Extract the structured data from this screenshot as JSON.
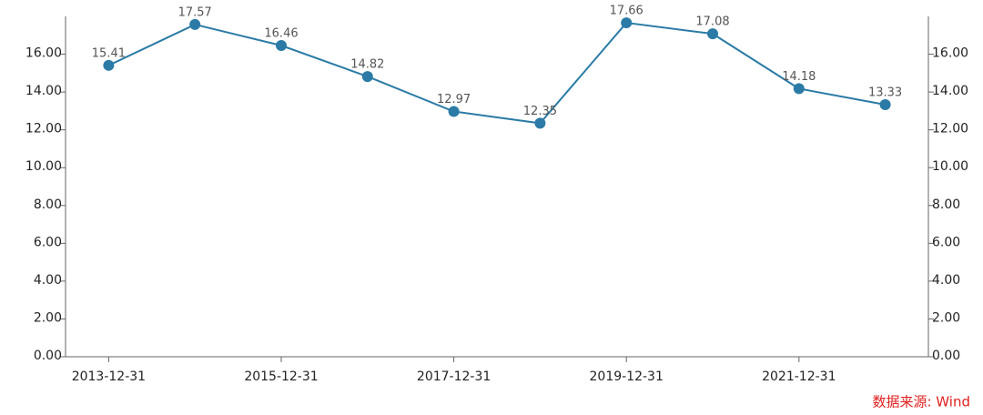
{
  "chart_data": {
    "type": "line",
    "categories": [
      "2013-12-31",
      null,
      "2015-12-31",
      null,
      "2017-12-31",
      null,
      "2019-12-31",
      null,
      "2021-12-31",
      null
    ],
    "values": [
      15.41,
      17.57,
      16.46,
      14.82,
      12.97,
      12.35,
      17.66,
      17.08,
      14.18,
      13.33
    ],
    "color": "#2b7ba6",
    "ylim": [
      0,
      18
    ],
    "yticks": [
      {
        "value": 0,
        "label": "0.00"
      },
      {
        "value": 2,
        "label": "2.00"
      },
      {
        "value": 4,
        "label": "4.00"
      },
      {
        "value": 6,
        "label": "6.00"
      },
      {
        "value": 8,
        "label": "8.00"
      },
      {
        "value": 10,
        "label": "10.00"
      },
      {
        "value": 12,
        "label": "12.00"
      },
      {
        "value": 14,
        "label": "14.00"
      },
      {
        "value": 16,
        "label": "16.00"
      }
    ],
    "y2lim": [
      0,
      18
    ],
    "y2ticks": [
      {
        "value": 0,
        "label": "0.00"
      },
      {
        "value": 2,
        "label": "2.00"
      },
      {
        "value": 4,
        "label": "4.00"
      },
      {
        "value": 6,
        "label": "6.00"
      },
      {
        "value": 8,
        "label": "8.00"
      },
      {
        "value": 10,
        "label": "10.00"
      },
      {
        "value": 12,
        "label": "12.00"
      },
      {
        "value": 14,
        "label": "14.00"
      },
      {
        "value": 16,
        "label": "16.00"
      }
    ],
    "source": "数据来源: Wind"
  }
}
